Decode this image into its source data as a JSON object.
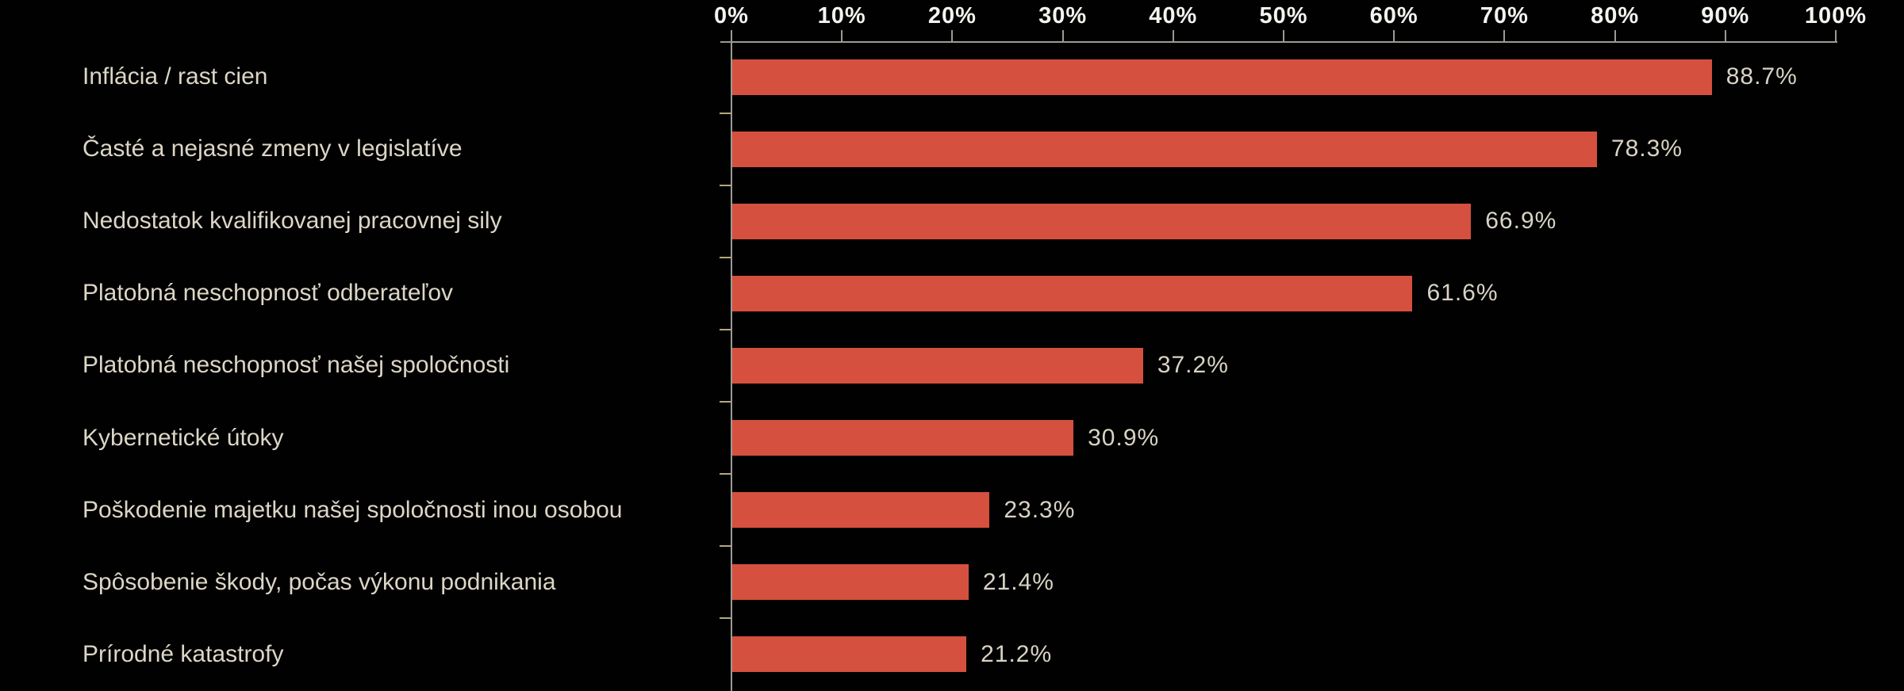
{
  "chart_data": {
    "type": "bar",
    "orientation": "horizontal",
    "title": "",
    "xlabel": "",
    "ylabel": "",
    "grid": false,
    "legend": false,
    "background_color": "#010101",
    "bar_color": "#d5503e",
    "axis_color": "#9b9b95",
    "tick_label_color": "#f4f3ef",
    "category_label_color": "#dcd6c6",
    "value_label_color": "#d8d3c3",
    "x_axis": {
      "position": "top",
      "min": 0,
      "max": 100,
      "tick_labels": [
        "0%",
        "10%",
        "20%",
        "30%",
        "40%",
        "50%",
        "60%",
        "70%",
        "80%",
        "90%",
        "100%"
      ]
    },
    "categories": [
      "Inflácia / rast cien",
      "Časté a nejasné zmeny v legislatíve",
      "Nedostatok kvalifikovanej pracovnej sily",
      "Platobná neschopnosť odberateľov",
      "Platobná neschopnosť našej spoločnosti",
      "Kybernetické útoky",
      "Poškodenie majetku našej spoločnosti inou osobou",
      "Spôsobenie škody, počas výkonu podnikania",
      "Prírodné katastrofy"
    ],
    "values": [
      88.7,
      78.3,
      66.9,
      61.6,
      37.2,
      30.9,
      23.3,
      21.4,
      21.2
    ],
    "value_labels": [
      "88.7%",
      "78.3%",
      "66.9%",
      "61.6%",
      "37.2%",
      "30.9%",
      "23.3%",
      "21.4%",
      "21.2%"
    ]
  }
}
